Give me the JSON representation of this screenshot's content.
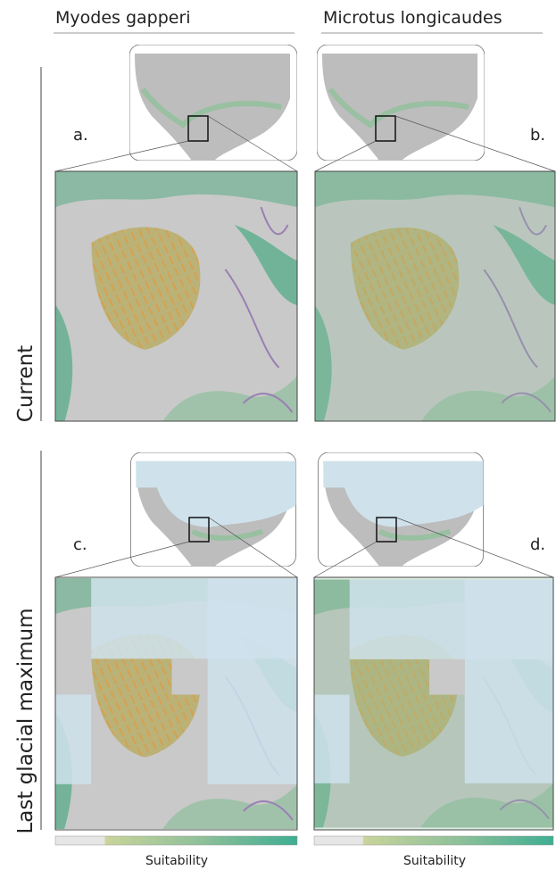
{
  "header": {
    "columns": [
      "Myodes gapperi",
      "Microtus longicaudes"
    ]
  },
  "rows": [
    {
      "label": "Current",
      "panels": [
        "a.",
        "b."
      ]
    },
    {
      "label": "Last glacial maximum",
      "panels": [
        "c.",
        "d."
      ]
    }
  ],
  "colorbars": [
    "Suitability",
    "Suitability"
  ]
}
